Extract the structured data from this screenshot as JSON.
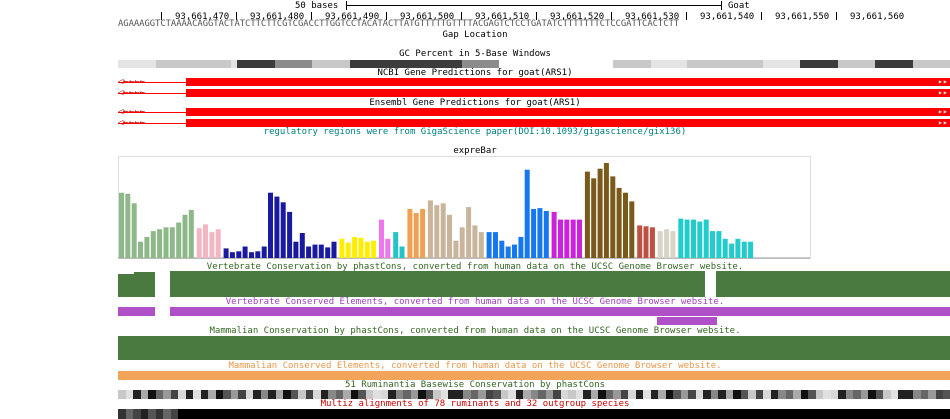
{
  "ruler": {
    "scale_label": "50 bases",
    "assembly_label": "Goat",
    "positions": [
      "93,661,470",
      "93,661,480",
      "93,661,490",
      "93,661,500",
      "93,661,510",
      "93,661,520",
      "93,661,530",
      "93,661,540",
      "93,661,550",
      "93,661,560"
    ]
  },
  "sequence": "AGAAAGGTCTAAAACAGGTACTATCTTCTTCGTCGACCTTGGTCCTACATACTTATGTTTTTGTTTTACGAGTCTCCTGATATCTTTTTTTCTCCGATTCACTCTT",
  "tracks": {
    "gap": "Gap Location",
    "gc": "GC Percent in 5-Base Windows",
    "ncbi": "NCBI Gene Predictions for goat(ARS1)",
    "ensembl": "Ensembl Gene Predictions for goat(ARS1)",
    "regulatory": "regulatory regions were from GigaScience paper(DOI:10.1093/gigascience/gix136)",
    "exprebar": "expreBar",
    "vert_cons": "Vertebrate Conservation by phastCons, converted from human data on the UCSC Genome Browser website.",
    "vert_elements": "Vertebrate Conserved Elements, converted from human data on the UCSC Genome Browser website.",
    "mamm_cons": "Mammalian Conservation by phastCons, converted from human data on the UCSC Genome Browser website.",
    "mamm_elements": "Mammalian Conserved Elements, converted from human data on the UCSC Genome Browser website.",
    "rum_cons": "51 Ruminantia Basewise Conservation by phastCons",
    "multiz": "Multiz alignments of 78 ruminants and 32 outgroup species"
  },
  "colors": {
    "gene": "#ff0000",
    "regulatory_text": "#008080",
    "cons_green": "#4a7a3f",
    "vert_element_purple": "#b050c8",
    "mamm_element_orange": "#f2a55a",
    "label_green": "#336622",
    "label_purple": "#9b3fbf",
    "label_orange": "#e8964a",
    "label_red": "#cc0000"
  },
  "exprebar_groups": [
    {
      "color": "#8fb88a",
      "values": [
        0.68,
        0.67,
        0.57,
        0.17,
        0.22,
        0.28,
        0.3,
        0.32,
        0.32,
        0.37,
        0.45,
        0.5
      ]
    },
    {
      "color": "#f4b6c2",
      "values": [
        0.31,
        0.35,
        0.27,
        0.3
      ]
    },
    {
      "color": "#1a1aa0",
      "values": [
        0.1,
        0.06,
        0.07,
        0.12,
        0.06,
        0.07,
        0.12,
        0.68,
        0.64,
        0.58,
        0.48,
        0.17,
        0.26,
        0.12,
        0.14,
        0.14,
        0.11,
        0.17
      ]
    },
    {
      "color": "#ffee00",
      "values": [
        0.2,
        0.16,
        0.22,
        0.21,
        0.17,
        0.18
      ]
    },
    {
      "color": "#ee77ee",
      "values": [
        0.4,
        0.2
      ]
    },
    {
      "color": "#22c4c4",
      "values": [
        0.27,
        0.12
      ]
    },
    {
      "color": "#f0a050",
      "values": [
        0.51,
        0.47,
        0.51
      ]
    },
    {
      "color": "#c9b49c",
      "values": [
        0.6,
        0.55,
        0.57,
        0.45,
        0.18,
        0.32,
        0.53,
        0.34,
        0.27
      ]
    },
    {
      "color": "#1777ee",
      "values": [
        0.27,
        0.27,
        0.18,
        0.12,
        0.14,
        0.22,
        0.92,
        0.51,
        0.52,
        0.49
      ]
    },
    {
      "color": "#cc22dd",
      "values": [
        0.48,
        0.4,
        0.4,
        0.4,
        0.4
      ]
    },
    {
      "color": "#7a5a1a",
      "values": [
        0.9,
        0.83,
        0.93,
        0.99,
        0.85,
        0.73,
        0.68,
        0.59
      ]
    },
    {
      "color": "#c05040",
      "values": [
        0.34,
        0.33,
        0.32
      ]
    },
    {
      "color": "#d8d4c8",
      "values": [
        0.28,
        0.3,
        0.28
      ]
    },
    {
      "color": "#22cccc",
      "values": [
        0.41,
        0.4,
        0.4,
        0.38,
        0.4,
        0.28,
        0.28,
        0.2,
        0.15,
        0.2,
        0.17,
        0.17
      ]
    }
  ]
}
